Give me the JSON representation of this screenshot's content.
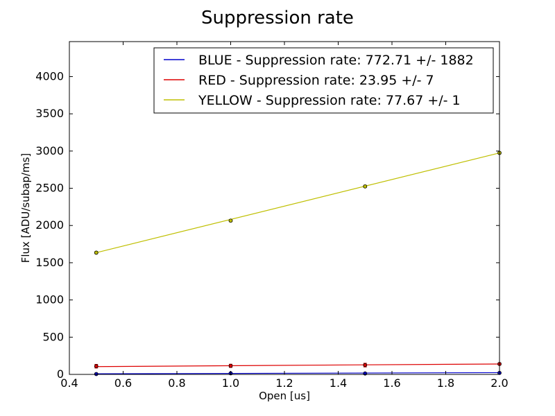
{
  "chart_data": {
    "type": "line",
    "title": "Suppression rate",
    "xlabel": "Open [us]",
    "ylabel": "Flux [ADU/subap/ms]",
    "xlim": [
      0.4,
      2.0
    ],
    "ylim": [
      0,
      4470
    ],
    "xticks": [
      0.4,
      0.6,
      0.8,
      1.0,
      1.2,
      1.4,
      1.6,
      1.8,
      2.0
    ],
    "xtick_labels": [
      "0.4",
      "0.6",
      "0.8",
      "1.0",
      "1.2",
      "1.4",
      "1.6",
      "1.8",
      "2.0"
    ],
    "yticks": [
      0,
      500,
      1000,
      1500,
      2000,
      2500,
      3000,
      3500,
      4000
    ],
    "yticks_labels": [
      "0",
      "500",
      "1000",
      "1500",
      "2000",
      "2500",
      "3000",
      "3500",
      "4000"
    ],
    "grid": false,
    "legend_position": "top-right",
    "series": [
      {
        "name": "BLUE - Suppression rate: 772.71 +/- 1882",
        "color": "#0000cc",
        "points": {
          "x": [
            0.5,
            1.0,
            1.5,
            2.0
          ],
          "y": [
            5,
            15,
            12,
            20
          ],
          "err": [
            8,
            8,
            8,
            8
          ]
        },
        "fit": {
          "x": [
            0.5,
            2.0
          ],
          "y": [
            8,
            24
          ]
        }
      },
      {
        "name": "RED - Suppression rate: 23.95 +/- 7",
        "color": "#dd0000",
        "points": {
          "x": [
            0.5,
            1.0,
            1.5,
            2.0
          ],
          "y": [
            110,
            115,
            125,
            140
          ],
          "err": [
            25,
            22,
            25,
            15
          ]
        },
        "fit": {
          "x": [
            0.5,
            2.0
          ],
          "y": [
            105,
            140
          ]
        }
      },
      {
        "name": "YELLOW - Suppression rate: 77.67 +/- 1",
        "color": "#bfbf00",
        "points": {
          "x": [
            0.5,
            1.0,
            1.5,
            2.0
          ],
          "y": [
            1635,
            2065,
            2525,
            2975
          ],
          "err": [
            15,
            15,
            15,
            15
          ]
        },
        "fit": {
          "x": [
            0.5,
            2.0
          ],
          "y": [
            1635,
            2975
          ]
        }
      }
    ]
  }
}
